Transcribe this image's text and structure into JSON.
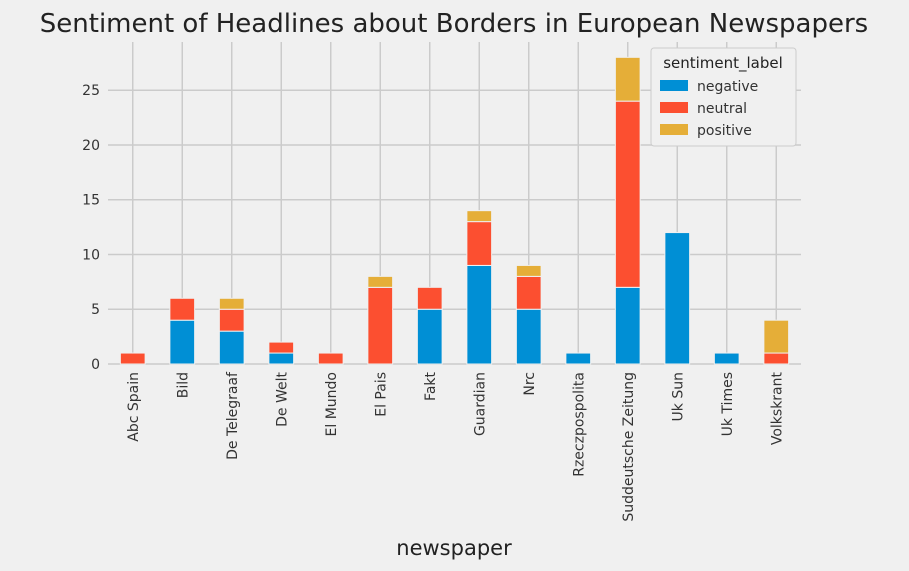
{
  "chart_data": {
    "type": "bar",
    "stacked": true,
    "title": "Sentiment of Headlines about Borders in European Newspapers",
    "xlabel": "newspaper",
    "ylabel": "",
    "ylim": [
      0,
      29.4
    ],
    "yticks": [
      0,
      5,
      10,
      15,
      20,
      25
    ],
    "grid": true,
    "legend": {
      "title": "sentiment_label",
      "placement": "top-right"
    },
    "categories": [
      "Abc Spain",
      "Bild",
      "De Telegraaf",
      "De Welt",
      "El Mundo",
      "El Pais",
      "Fakt",
      "Guardian",
      "Nrc",
      "Rzeczpospolita",
      "Suddeutsche Zeitung",
      "Uk Sun",
      "Uk Times",
      "Volkskrant"
    ],
    "series": [
      {
        "name": "negative",
        "color": "#008fd5",
        "values": [
          0,
          4,
          3,
          1,
          0,
          0,
          5,
          9,
          5,
          1,
          7,
          12,
          1,
          0
        ]
      },
      {
        "name": "neutral",
        "color": "#fc4f30",
        "values": [
          1,
          2,
          2,
          1,
          1,
          7,
          2,
          4,
          3,
          0,
          17,
          0,
          0,
          1
        ]
      },
      {
        "name": "positive",
        "color": "#e5ae38",
        "values": [
          0,
          0,
          1,
          0,
          0,
          1,
          0,
          1,
          1,
          0,
          4,
          0,
          0,
          3
        ]
      }
    ]
  }
}
